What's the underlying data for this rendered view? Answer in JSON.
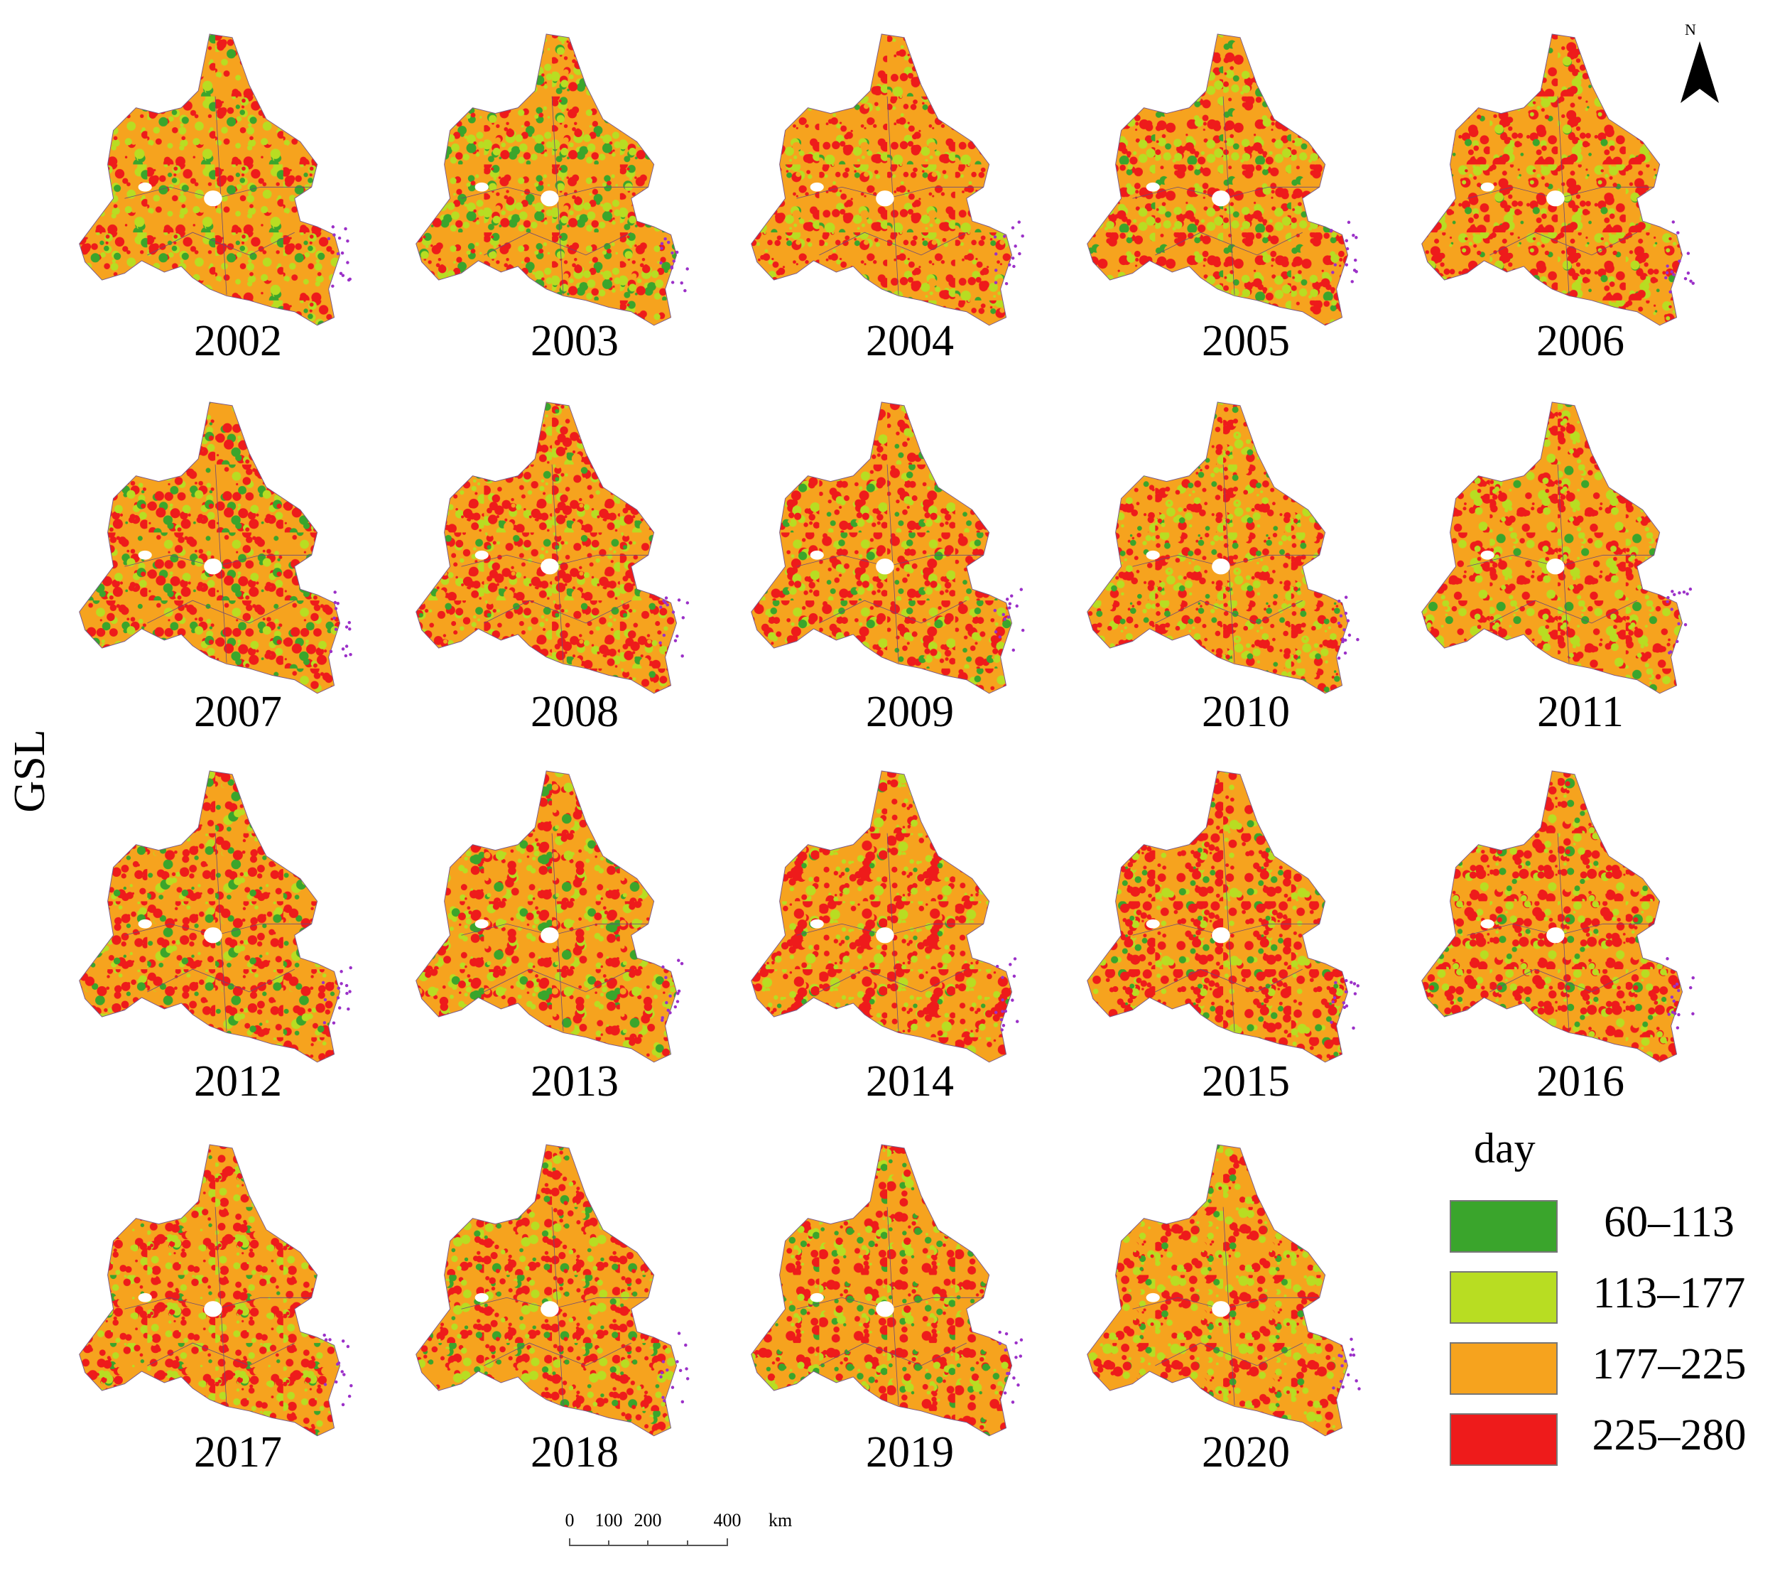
{
  "y_axis_label": "GSL",
  "panels": [
    {
      "label": "2002"
    },
    {
      "label": "2003"
    },
    {
      "label": "2004"
    },
    {
      "label": "2005"
    },
    {
      "label": "2006"
    },
    {
      "label": "2007"
    },
    {
      "label": "2008"
    },
    {
      "label": "2009"
    },
    {
      "label": "2010"
    },
    {
      "label": "2011"
    },
    {
      "label": "2012"
    },
    {
      "label": "2013"
    },
    {
      "label": "2014"
    },
    {
      "label": "2015"
    },
    {
      "label": "2016"
    },
    {
      "label": "2017"
    },
    {
      "label": "2018"
    },
    {
      "label": "2019"
    },
    {
      "label": "2020"
    }
  ],
  "legend": {
    "title": "day",
    "items": [
      {
        "label": "60–113",
        "color": "#3aa52c"
      },
      {
        "label": "113–177",
        "color": "#b8dd22"
      },
      {
        "label": "177–225",
        "color": "#f6a31e"
      },
      {
        "label": "225–280",
        "color": "#ee1b1b"
      }
    ]
  },
  "scale_bar": {
    "labels": [
      "0",
      "100",
      "200",
      "400"
    ],
    "unit": "km"
  },
  "north_arrow": {
    "label": "N"
  }
}
